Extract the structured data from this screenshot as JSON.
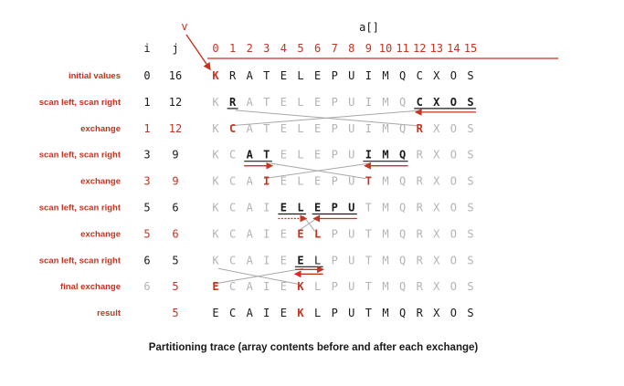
{
  "colors": {
    "red": "#c8321e",
    "black": "#1a1a1a",
    "gray": "#b3b3b3",
    "strike": "#a8a8a8"
  },
  "header": {
    "array_name": "a[]",
    "pivot_label": "v",
    "i_label": "i",
    "j_label": "j",
    "indices": [
      "0",
      "1",
      "2",
      "3",
      "4",
      "5",
      "6",
      "7",
      "8",
      "9",
      "10",
      "11",
      "12",
      "13",
      "14",
      "15"
    ]
  },
  "rows": [
    {
      "label": "initial values",
      "i": "0",
      "j": "16",
      "ij_color": "black",
      "i_faint": false,
      "chars": [
        "K",
        "R",
        "A",
        "T",
        "E",
        "L",
        "E",
        "P",
        "U",
        "I",
        "M",
        "Q",
        "C",
        "X",
        "O",
        "S"
      ],
      "styles": [
        "r",
        "b",
        "b",
        "b",
        "b",
        "b",
        "b",
        "b",
        "b",
        "b",
        "b",
        "b",
        "b",
        "b",
        "b",
        "b"
      ]
    },
    {
      "label": "scan left, scan right",
      "i": "1",
      "j": "12",
      "ij_color": "black",
      "i_faint": false,
      "chars": [
        "K",
        "R",
        "A",
        "T",
        "E",
        "L",
        "E",
        "P",
        "U",
        "I",
        "M",
        "Q",
        "C",
        "X",
        "O",
        "S"
      ],
      "styles": [
        "g",
        "B",
        "g",
        "g",
        "g",
        "g",
        "g",
        "g",
        "g",
        "g",
        "g",
        "g",
        "B",
        "B",
        "B",
        "B"
      ]
    },
    {
      "label": "exchange",
      "i": "1",
      "j": "12",
      "ij_color": "red",
      "i_faint": false,
      "chars": [
        "K",
        "C",
        "A",
        "T",
        "E",
        "L",
        "E",
        "P",
        "U",
        "I",
        "M",
        "Q",
        "R",
        "X",
        "O",
        "S"
      ],
      "styles": [
        "g",
        "r",
        "g",
        "g",
        "g",
        "g",
        "g",
        "g",
        "g",
        "g",
        "g",
        "g",
        "r",
        "g",
        "g",
        "g"
      ]
    },
    {
      "label": "scan left, scan right",
      "i": "3",
      "j": "9",
      "ij_color": "black",
      "i_faint": false,
      "chars": [
        "K",
        "C",
        "A",
        "T",
        "E",
        "L",
        "E",
        "P",
        "U",
        "I",
        "M",
        "Q",
        "R",
        "X",
        "O",
        "S"
      ],
      "styles": [
        "g",
        "g",
        "B",
        "B",
        "g",
        "g",
        "g",
        "g",
        "g",
        "B",
        "B",
        "B",
        "g",
        "g",
        "g",
        "g"
      ]
    },
    {
      "label": "exchange",
      "i": "3",
      "j": "9",
      "ij_color": "red",
      "i_faint": false,
      "chars": [
        "K",
        "C",
        "A",
        "I",
        "E",
        "L",
        "E",
        "P",
        "U",
        "T",
        "M",
        "Q",
        "R",
        "X",
        "O",
        "S"
      ],
      "styles": [
        "g",
        "g",
        "g",
        "r",
        "g",
        "g",
        "g",
        "g",
        "g",
        "r",
        "g",
        "g",
        "g",
        "g",
        "g",
        "g"
      ]
    },
    {
      "label": "scan left, scan right",
      "i": "5",
      "j": "6",
      "ij_color": "black",
      "i_faint": false,
      "chars": [
        "K",
        "C",
        "A",
        "I",
        "E",
        "L",
        "E",
        "P",
        "U",
        "T",
        "M",
        "Q",
        "R",
        "X",
        "O",
        "S"
      ],
      "styles": [
        "g",
        "g",
        "g",
        "g",
        "B",
        "B",
        "B",
        "B",
        "B",
        "g",
        "g",
        "g",
        "g",
        "g",
        "g",
        "g"
      ]
    },
    {
      "label": "exchange",
      "i": "5",
      "j": "6",
      "ij_color": "red",
      "i_faint": false,
      "chars": [
        "K",
        "C",
        "A",
        "I",
        "E",
        "E",
        "L",
        "P",
        "U",
        "T",
        "M",
        "Q",
        "R",
        "X",
        "O",
        "S"
      ],
      "styles": [
        "g",
        "g",
        "g",
        "g",
        "g",
        "r",
        "r",
        "g",
        "g",
        "g",
        "g",
        "g",
        "g",
        "g",
        "g",
        "g"
      ]
    },
    {
      "label": "scan left, scan right",
      "i": "6",
      "j": "5",
      "ij_color": "black",
      "i_faint": false,
      "chars": [
        "K",
        "C",
        "A",
        "I",
        "E",
        "E",
        "L",
        "P",
        "U",
        "T",
        "M",
        "Q",
        "R",
        "X",
        "O",
        "S"
      ],
      "styles": [
        "g",
        "g",
        "g",
        "g",
        "g",
        "B",
        "b",
        "g",
        "g",
        "g",
        "g",
        "g",
        "g",
        "g",
        "g",
        "g"
      ]
    },
    {
      "label": "final exchange",
      "i": "6",
      "j": "5",
      "ij_color": "red",
      "i_faint": true,
      "chars": [
        "E",
        "C",
        "A",
        "I",
        "E",
        "K",
        "L",
        "P",
        "U",
        "T",
        "M",
        "Q",
        "R",
        "X",
        "O",
        "S"
      ],
      "styles": [
        "r",
        "g",
        "g",
        "g",
        "g",
        "r",
        "g",
        "g",
        "g",
        "g",
        "g",
        "g",
        "g",
        "g",
        "g",
        "g"
      ]
    },
    {
      "label": "result",
      "i": "",
      "j": "5",
      "ij_color": "red",
      "i_faint": false,
      "chars": [
        "E",
        "C",
        "A",
        "I",
        "E",
        "K",
        "L",
        "P",
        "U",
        "T",
        "M",
        "Q",
        "R",
        "X",
        "O",
        "S"
      ],
      "styles": [
        "b",
        "b",
        "b",
        "b",
        "b",
        "r",
        "b",
        "b",
        "b",
        "b",
        "b",
        "b",
        "b",
        "b",
        "b",
        "b"
      ]
    }
  ],
  "caption": "Partitioning trace (array contents before and after each exchange)"
}
